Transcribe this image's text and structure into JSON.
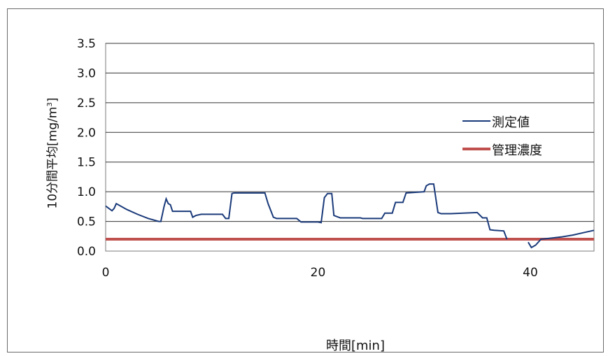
{
  "chart_data": {
    "type": "line",
    "title": "",
    "xlabel": "時間[min]",
    "ylabel_main": "10分間平均[mg/m",
    "ylabel_sup": "3",
    "ylabel_tail": "]",
    "xlim": [
      0,
      46
    ],
    "ylim": [
      0,
      3.5
    ],
    "xticks": [
      "0",
      "20",
      "40"
    ],
    "xtick_values": [
      0,
      20,
      40
    ],
    "yticks": [
      "0.0",
      "0.5",
      "1.0",
      "1.5",
      "2.0",
      "2.5",
      "3.0",
      "3.5"
    ],
    "ytick_values": [
      0,
      0.5,
      1.0,
      1.5,
      2.0,
      2.5,
      3.0,
      3.5
    ],
    "grid": true,
    "legend_position": "right",
    "series": [
      {
        "name": "測定値",
        "color": "#1a3a7a",
        "x": [
          0,
          0.3,
          0.6,
          0.8,
          1.0,
          2,
          3,
          4,
          5,
          5.2,
          5.5,
          5.7,
          5.9,
          6.1,
          6.3,
          8,
          8.2,
          8.5,
          9,
          10,
          11,
          11.3,
          11.6,
          11.9,
          12.1,
          15,
          15.3,
          15.8,
          16.1,
          18,
          18.4,
          20,
          20.3,
          20.6,
          20.9,
          21.3,
          21.5,
          21.8,
          22.1,
          24,
          24.2,
          26,
          26.3,
          27,
          27.3,
          28,
          28.3,
          30,
          30.2,
          30.5,
          30.9,
          31.3,
          31.6,
          32.5,
          35,
          35.5,
          35.9,
          36.2,
          36.6,
          37.5,
          37.8
        ],
        "y": [
          0.76,
          0.72,
          0.68,
          0.72,
          0.8,
          0.7,
          0.62,
          0.55,
          0.5,
          0.5,
          0.75,
          0.88,
          0.8,
          0.78,
          0.67,
          0.67,
          0.57,
          0.6,
          0.62,
          0.62,
          0.62,
          0.55,
          0.55,
          0.97,
          0.98,
          0.98,
          0.8,
          0.57,
          0.55,
          0.55,
          0.49,
          0.49,
          0.48,
          0.9,
          0.97,
          0.97,
          0.6,
          0.58,
          0.56,
          0.56,
          0.55,
          0.55,
          0.64,
          0.64,
          0.82,
          0.82,
          0.98,
          1.0,
          1.1,
          1.13,
          1.13,
          0.65,
          0.63,
          0.63,
          0.65,
          0.56,
          0.56,
          0.36,
          0.35,
          0.34,
          0.2
        ],
        "x2": [
          39.8,
          40.1,
          40.5,
          41,
          42,
          43,
          44,
          45,
          46
        ],
        "y2": [
          0.15,
          0.06,
          0.1,
          0.2,
          0.22,
          0.24,
          0.27,
          0.31,
          0.35
        ]
      },
      {
        "name": "管理濃度",
        "color": "#c0504d",
        "x": [
          0,
          46
        ],
        "y": [
          0.2,
          0.2
        ]
      }
    ]
  }
}
